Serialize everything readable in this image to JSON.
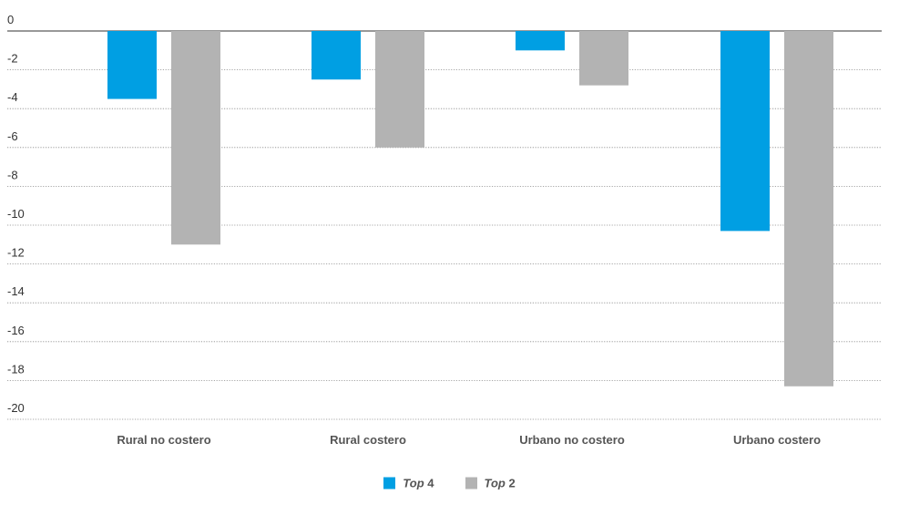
{
  "chart_data": {
    "type": "bar",
    "categories": [
      "Rural no costero",
      "Rural costero",
      "Urbano no costero",
      "Urbano costero"
    ],
    "series": [
      {
        "name": "Top 4",
        "name_prefix": "Top",
        "name_suffix": "4",
        "color": "#009fe3",
        "values": [
          -3.5,
          -2.5,
          -1.0,
          -10.3
        ]
      },
      {
        "name": "Top 2",
        "name_prefix": "Top",
        "name_suffix": "2",
        "color": "#b3b3b3",
        "values": [
          -11.0,
          -6.0,
          -2.8,
          -18.3
        ]
      }
    ],
    "ylim": [
      -20,
      0
    ],
    "yticks": [
      0,
      -2,
      -4,
      -6,
      -8,
      -10,
      -12,
      -14,
      -16,
      -18,
      -20
    ],
    "title": "",
    "xlabel": "",
    "ylabel": "",
    "grid": "dotted horizontal",
    "legend_position": "bottom-center"
  }
}
